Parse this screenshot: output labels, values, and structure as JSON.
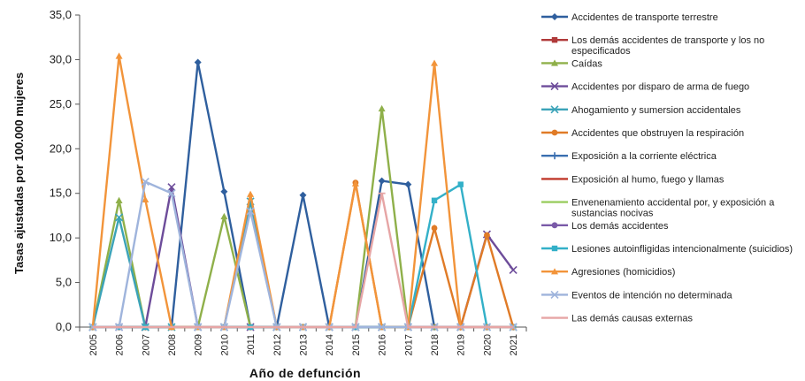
{
  "chart_data": {
    "type": "line",
    "xlabel": "Año de defunción",
    "ylabel": "Tasas ajustadas por 100.000 mujeres",
    "ylim": [
      0,
      35
    ],
    "ytick_labels": [
      "0,0",
      "5,0",
      "10,0",
      "15,0",
      "20,0",
      "25,0",
      "30,0",
      "35,0"
    ],
    "x": [
      "2005",
      "2006",
      "2007",
      "2008",
      "2009",
      "2010",
      "2011",
      "2012",
      "2013",
      "2014",
      "2015",
      "2016",
      "2017",
      "2018",
      "2019",
      "2020",
      "2021"
    ],
    "legend_position": "right",
    "grid": false,
    "series": [
      {
        "name": "Accidentes de transporte terrestre",
        "color": "#2f5f9e",
        "marker": "diamond",
        "values": [
          0,
          0,
          0,
          0,
          29.7,
          15.2,
          0,
          0,
          14.8,
          0,
          0,
          16.4,
          16.0,
          0,
          0,
          0,
          0
        ]
      },
      {
        "name": "Los demás accidentes de transporte y los no especificados",
        "color": "#b03a3a",
        "marker": "square",
        "values": [
          0,
          0,
          0,
          0,
          0,
          0,
          0,
          0,
          0,
          0,
          0,
          0,
          0,
          0,
          0,
          0,
          0
        ]
      },
      {
        "name": "Caídas",
        "color": "#8fb04a",
        "marker": "triangle",
        "values": [
          0,
          14.2,
          0,
          0,
          0,
          12.4,
          0,
          0,
          0,
          0,
          0,
          24.5,
          0,
          0,
          0,
          0,
          0
        ]
      },
      {
        "name": "Accidentes por disparo de arma de fuego",
        "color": "#6d4c9a",
        "marker": "x",
        "values": [
          0,
          0,
          0,
          15.7,
          0,
          0,
          0,
          0,
          0,
          0,
          0,
          0,
          0,
          0,
          0,
          10.4,
          6.4
        ]
      },
      {
        "name": "Ahogamiento y sumersion accidentales",
        "color": "#3ba3b8",
        "marker": "x",
        "values": [
          0,
          12.3,
          0,
          0,
          0,
          0,
          14.1,
          0,
          0,
          0,
          0,
          0,
          0,
          0,
          0,
          0,
          0
        ]
      },
      {
        "name": "Accidentes que obstruyen la respiración",
        "color": "#e07b27",
        "marker": "circle",
        "values": [
          0,
          0,
          0,
          0,
          0,
          0,
          0,
          0,
          0,
          0,
          16.2,
          0,
          0,
          11.1,
          0,
          10.3,
          0
        ]
      },
      {
        "name": "Exposición a la corriente eléctrica",
        "color": "#3a6fb0",
        "marker": "plus",
        "values": [
          0,
          0,
          0,
          0,
          0,
          0,
          0,
          0,
          0,
          0,
          0,
          0,
          0,
          0,
          0,
          0,
          0
        ]
      },
      {
        "name": "Exposición al humo, fuego y llamas",
        "color": "#c0392b",
        "marker": "dash",
        "values": [
          0,
          0,
          0,
          0,
          0,
          0,
          0,
          0,
          0,
          0,
          0,
          0,
          0,
          0,
          0,
          0,
          0
        ]
      },
      {
        "name": "Envenenamiento accidental por, y exposición a sustancias nocivas",
        "color": "#9acd60",
        "marker": "dash",
        "values": [
          0,
          0,
          0,
          0,
          0,
          0,
          0,
          0,
          0,
          0,
          0,
          0,
          0,
          0,
          0,
          0,
          0
        ]
      },
      {
        "name": "Los demás accidentes",
        "color": "#7a5aa8",
        "marker": "circle",
        "values": [
          0,
          0,
          0,
          0,
          0,
          0,
          0,
          0,
          0,
          0,
          0,
          0,
          0,
          0,
          0,
          0,
          0
        ]
      },
      {
        "name": "Lesiones autoinfligidas intencionalmente (suicidios)",
        "color": "#33b0c8",
        "marker": "square",
        "values": [
          0,
          0,
          0,
          0,
          0,
          0,
          0,
          0,
          0,
          0,
          0,
          0,
          0,
          14.2,
          16.0,
          0,
          0
        ]
      },
      {
        "name": "Agresiones (homicidios)",
        "color": "#f2943a",
        "marker": "triangle",
        "values": [
          0,
          30.4,
          14.3,
          0,
          0,
          0,
          14.9,
          0,
          0,
          0,
          16.1,
          0,
          0,
          29.6,
          0,
          0,
          0
        ]
      },
      {
        "name": "Eventos de intención no determinada",
        "color": "#9fb4dc",
        "marker": "x",
        "values": [
          0,
          0,
          16.3,
          15.0,
          0,
          0,
          13.0,
          0,
          0,
          0,
          0,
          0,
          0,
          0,
          0,
          0,
          0
        ]
      },
      {
        "name": "Las demás causas externas",
        "color": "#e6a5a5",
        "marker": "dash",
        "values": [
          0,
          0,
          0,
          0,
          0,
          0,
          0,
          0,
          0,
          0,
          0,
          15.0,
          0,
          0,
          0,
          0,
          0
        ]
      }
    ]
  }
}
